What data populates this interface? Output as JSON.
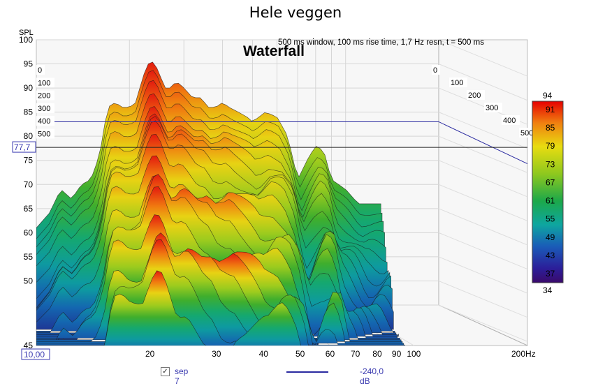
{
  "chart_data": {
    "type": "area",
    "title": "Hele veggen",
    "subtitle": "Waterfall",
    "window_info": "500 ms window, 100 ms rise time,  1,7 Hz resn, t = 500 ms",
    "ylabel": "SPL",
    "xlabel": "Hz",
    "x_scale": "log",
    "xlim": [
      10,
      200
    ],
    "ylim": [
      45,
      100
    ],
    "x_ticks": [
      20,
      30,
      40,
      50,
      60,
      70,
      80,
      90,
      100
    ],
    "x_start_label": "10,00",
    "x_end_label": "200Hz",
    "y_ticks": [
      45,
      50,
      55,
      60,
      65,
      70,
      75,
      80,
      85,
      90,
      95,
      100
    ],
    "cursor_value": "77,7",
    "cursor_level": 77.7,
    "time_axis_ms": [
      "0",
      "100",
      "200",
      "300",
      "400",
      "500"
    ],
    "colorbar": {
      "max_label": "94",
      "min_label": "34",
      "labels": [
        "91",
        "85",
        "79",
        "73",
        "67",
        "61",
        "55",
        "49",
        "43",
        "37"
      ]
    },
    "series": [
      {
        "name": "sep 7",
        "t_ms": 0,
        "x": [
          10,
          11,
          12,
          13,
          14,
          15,
          16,
          17,
          18,
          19,
          20,
          21,
          22,
          23,
          24,
          25,
          26,
          27,
          28,
          29,
          30,
          32,
          34,
          36,
          38,
          40,
          42,
          45,
          48,
          50,
          55,
          60,
          65,
          70,
          75,
          80,
          85,
          90,
          95,
          100,
          110
        ],
        "values": [
          61,
          64,
          69,
          67,
          70,
          71,
          76,
          86,
          87,
          86,
          86,
          87,
          92,
          95,
          95.5,
          93,
          90,
          90,
          91,
          91,
          90,
          88,
          88,
          86,
          86,
          87,
          86,
          85,
          84,
          83,
          85,
          84,
          80,
          71,
          75,
          78,
          77,
          71,
          70,
          69,
          66
        ]
      }
    ],
    "threshold_line": {
      "label": "-240,0 dB",
      "level": 83
    }
  },
  "legend": {
    "series_name": "sep 7",
    "checked": "✓",
    "line_label": "-240,0 dB"
  }
}
